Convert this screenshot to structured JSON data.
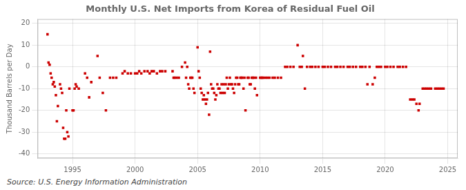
{
  "chart_data": {
    "type": "scatter",
    "title": "Monthly U.S. Net Imports from Korea of Residual Fuel Oil",
    "ylabel": "Thousand Barrels per Day",
    "source": "Source: U.S. Energy Information Administration",
    "color": "#cc0000",
    "marker": "square",
    "grid": true,
    "xlim": [
      1992.2,
      2025.8
    ],
    "ylim": [
      -42,
      22
    ],
    "yticks": [
      -40,
      -30,
      -20,
      -10,
      0,
      10,
      20
    ],
    "xticks": [
      1995,
      2000,
      2005,
      2010,
      2015,
      2020,
      2025
    ],
    "x": [
      1993.0,
      1993.08,
      1993.17,
      1993.25,
      1993.33,
      1993.42,
      1993.5,
      1993.58,
      1993.67,
      1993.75,
      1993.83,
      1994.0,
      1994.08,
      1994.17,
      1994.25,
      1994.33,
      1994.42,
      1994.5,
      1994.58,
      1994.67,
      1994.75,
      1995.0,
      1995.08,
      1995.17,
      1995.25,
      1995.33,
      1995.5,
      1996.0,
      1996.17,
      1996.33,
      1996.5,
      1997.0,
      1997.17,
      1997.42,
      1997.67,
      1998.0,
      1998.25,
      1998.5,
      1999.0,
      1999.17,
      1999.42,
      1999.67,
      2000.0,
      2000.17,
      2000.33,
      2000.5,
      2000.75,
      2001.0,
      2001.17,
      2001.33,
      2001.5,
      2001.75,
      2002.0,
      2002.17,
      2002.42,
      2003.0,
      2003.08,
      2003.17,
      2003.33,
      2003.5,
      2003.75,
      2004.0,
      2004.08,
      2004.17,
      2004.25,
      2004.33,
      2004.42,
      2004.5,
      2004.58,
      2004.67,
      2004.75,
      2005.0,
      2005.08,
      2005.17,
      2005.25,
      2005.33,
      2005.42,
      2005.5,
      2005.58,
      2005.67,
      2005.75,
      2005.83,
      2005.92,
      2006.0,
      2006.08,
      2006.17,
      2006.25,
      2006.33,
      2006.42,
      2006.5,
      2006.58,
      2006.67,
      2006.75,
      2006.83,
      2006.92,
      2007.0,
      2007.08,
      2007.17,
      2007.25,
      2007.33,
      2007.42,
      2007.5,
      2007.58,
      2007.67,
      2007.75,
      2007.83,
      2007.92,
      2008.0,
      2008.08,
      2008.17,
      2008.25,
      2008.33,
      2008.42,
      2008.5,
      2008.58,
      2008.67,
      2008.75,
      2008.83,
      2009.0,
      2009.08,
      2009.17,
      2009.25,
      2009.33,
      2009.42,
      2009.5,
      2009.58,
      2009.67,
      2009.75,
      2010.0,
      2010.08,
      2010.17,
      2010.25,
      2010.42,
      2010.58,
      2010.75,
      2011.0,
      2011.17,
      2011.42,
      2011.67,
      2012.0,
      2012.17,
      2012.42,
      2012.67,
      2013.0,
      2013.17,
      2013.33,
      2013.42,
      2013.58,
      2013.75,
      2014.0,
      2014.17,
      2014.42,
      2014.67,
      2015.0,
      2015.17,
      2015.42,
      2015.67,
      2016.0,
      2016.17,
      2016.42,
      2016.67,
      2017.0,
      2017.17,
      2017.42,
      2017.67,
      2018.0,
      2018.17,
      2018.42,
      2018.58,
      2018.75,
      2019.0,
      2019.17,
      2019.33,
      2019.5,
      2019.67,
      2020.0,
      2020.17,
      2020.42,
      2020.67,
      2021.0,
      2021.17,
      2021.42,
      2021.67,
      2022.0,
      2022.17,
      2022.33,
      2022.5,
      2022.67,
      2022.75,
      2023.0,
      2023.17,
      2023.33,
      2023.5,
      2023.67,
      2024.0,
      2024.17,
      2024.33,
      2024.5,
      2024.67
    ],
    "values": [
      15.0,
      2.0,
      1.0,
      -3.0,
      -5.0,
      -8.0,
      -7.0,
      -9.0,
      -13.0,
      -25.0,
      -18.0,
      -8.0,
      -10.0,
      -12.0,
      -28.0,
      -33.0,
      -33.0,
      -20.0,
      -30.0,
      -32.0,
      -10.0,
      -20.0,
      -20.0,
      -10.0,
      -8.0,
      -9.0,
      -10.0,
      -3.0,
      -5.0,
      -14.0,
      -7.0,
      5.0,
      -5.0,
      -12.0,
      -20.0,
      -5.0,
      -5.0,
      -5.0,
      -3.0,
      -2.0,
      -3.0,
      -3.0,
      -3.0,
      -3.0,
      -2.0,
      -3.0,
      -2.0,
      -2.0,
      -3.0,
      -2.0,
      -2.0,
      -3.0,
      -2.0,
      -2.0,
      -2.0,
      -2.0,
      -5.0,
      -5.0,
      -5.0,
      -5.0,
      0.0,
      2.0,
      -5.0,
      0.0,
      -8.0,
      -10.0,
      -5.0,
      -5.0,
      -5.0,
      -10.0,
      -12.0,
      9.0,
      -2.0,
      -5.0,
      -10.0,
      -12.0,
      -15.0,
      -13.0,
      -15.0,
      -17.0,
      -15.0,
      -12.0,
      -22.0,
      7.0,
      -8.0,
      -10.0,
      -10.0,
      -12.0,
      -15.0,
      -13.0,
      -8.0,
      -10.0,
      -10.0,
      -12.0,
      -8.0,
      -12.0,
      -8.0,
      -12.0,
      -8.0,
      -5.0,
      -10.0,
      -8.0,
      -5.0,
      -8.0,
      -8.0,
      -10.0,
      -12.0,
      -8.0,
      -5.0,
      -5.0,
      -8.0,
      -8.0,
      -5.0,
      -5.0,
      -5.0,
      -10.0,
      -5.0,
      -20.0,
      -5.0,
      -5.0,
      -8.0,
      -8.0,
      -5.0,
      -5.0,
      -5.0,
      -10.0,
      -5.0,
      -13.0,
      -5.0,
      -5.0,
      -5.0,
      -5.0,
      -5.0,
      -5.0,
      -5.0,
      -5.0,
      -5.0,
      -5.0,
      -5.0,
      0.0,
      0.0,
      0.0,
      0.0,
      10.0,
      0.0,
      0.0,
      5.0,
      -10.0,
      0.0,
      0.0,
      0.0,
      0.0,
      0.0,
      0.0,
      0.0,
      0.0,
      0.0,
      0.0,
      0.0,
      0.0,
      0.0,
      0.0,
      0.0,
      0.0,
      0.0,
      0.0,
      0.0,
      0.0,
      -8.0,
      0.0,
      -8.0,
      -5.0,
      0.0,
      0.0,
      0.0,
      0.0,
      0.0,
      0.0,
      0.0,
      0.0,
      0.0,
      0.0,
      0.0,
      -15.0,
      -15.0,
      -15.0,
      -17.0,
      -20.0,
      -17.0,
      -10.0,
      -10.0,
      -10.0,
      -10.0,
      -10.0,
      -10.0,
      -10.0,
      -10.0,
      -10.0,
      -10.0
    ]
  }
}
